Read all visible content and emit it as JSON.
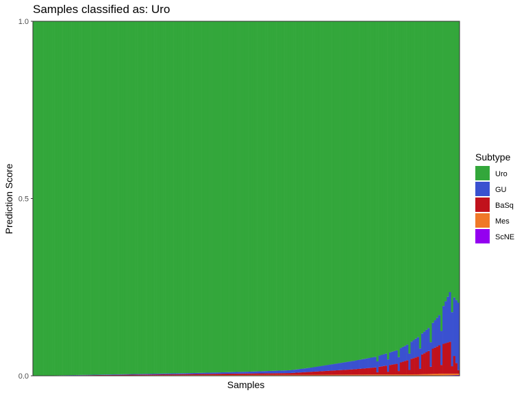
{
  "chart_data": {
    "type": "bar",
    "stacked": true,
    "title": "Samples classified as: Uro",
    "xlabel": "Samples",
    "ylabel": "Prediction Score",
    "ylim": [
      0,
      1
    ],
    "yticks": [
      "0.0",
      "0.5",
      "1.0"
    ],
    "n_samples": 200,
    "legend": {
      "title": "Subtype",
      "placement": "right",
      "entries": [
        {
          "name": "Uro",
          "color": "#33a73b"
        },
        {
          "name": "GU",
          "color": "#3a51d0"
        },
        {
          "name": "BaSq",
          "color": "#c1121c"
        },
        {
          "name": "Mes",
          "color": "#f07828"
        },
        {
          "name": "ScNE",
          "color": "#9400f0"
        }
      ]
    },
    "series": [
      {
        "name": "GU",
        "color": "#3a51d0",
        "values_sampled": [
          [
            0,
            0
          ],
          [
            50,
            0.002
          ],
          [
            75,
            0.003
          ],
          [
            100,
            0.005
          ],
          [
            120,
            0.008
          ],
          [
            130,
            0.012
          ],
          [
            140,
            0.018
          ],
          [
            150,
            0.024
          ],
          [
            160,
            0.03
          ],
          [
            170,
            0.038
          ],
          [
            175,
            0.044
          ],
          [
            180,
            0.055
          ],
          [
            185,
            0.065
          ],
          [
            190,
            0.085
          ],
          [
            195,
            0.14
          ],
          [
            199,
            0.19
          ]
        ]
      },
      {
        "name": "BaSq",
        "color": "#c1121c",
        "values_sampled": [
          [
            0,
            0
          ],
          [
            120,
            0.005
          ],
          [
            150,
            0.015
          ],
          [
            160,
            0.02
          ],
          [
            170,
            0.03
          ],
          [
            180,
            0.05
          ],
          [
            190,
            0.08
          ],
          [
            195,
            0.09
          ],
          [
            199,
            0.01
          ]
        ]
      },
      {
        "name": "Mes",
        "color": "#f07828",
        "values_sampled": [
          [
            0,
            0
          ],
          [
            180,
            0.003
          ],
          [
            190,
            0.005
          ],
          [
            199,
            0.004
          ]
        ]
      },
      {
        "name": "ScNE",
        "color": "#9400f0",
        "values_sampled": [
          [
            0,
            0
          ],
          [
            190,
            0.001
          ],
          [
            199,
            0.002
          ]
        ]
      },
      {
        "name": "Uro",
        "color": "#33a73b",
        "values": "remainder to 1.0"
      }
    ]
  }
}
